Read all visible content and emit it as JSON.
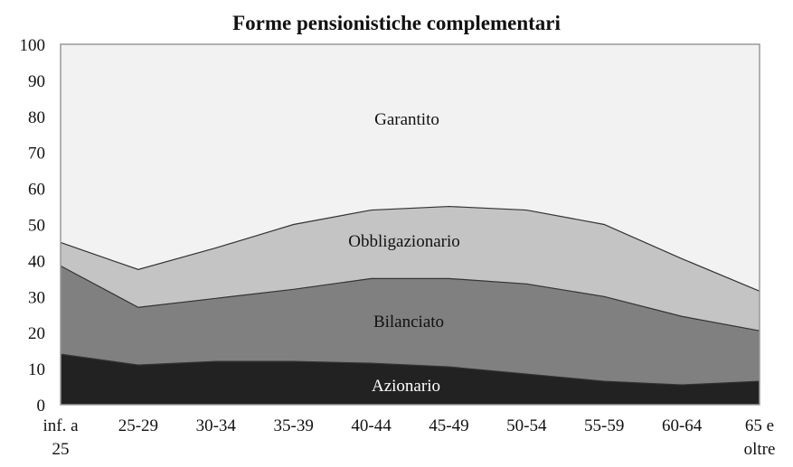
{
  "chart_data": {
    "type": "area",
    "stacked": true,
    "title": "Forme pensionistiche complementari",
    "xlabel": "",
    "ylabel": "",
    "ylim": [
      0,
      100
    ],
    "yticks": [
      0,
      10,
      20,
      30,
      40,
      50,
      60,
      70,
      80,
      90,
      100
    ],
    "grid": false,
    "legend": "inline labels",
    "categories": [
      "inf. a 25",
      "25-29",
      "30-34",
      "35-39",
      "40-44",
      "45-49",
      "50-54",
      "55-59",
      "60-64",
      "65 e oltre"
    ],
    "series": [
      {
        "name": "Azionario",
        "color": "#222222",
        "values": [
          14,
          11,
          12,
          12,
          11.5,
          10.5,
          8.5,
          6.5,
          5.5,
          6.5
        ]
      },
      {
        "name": "Bilanciato",
        "color": "#808080",
        "values": [
          24.5,
          16,
          17.5,
          20,
          23.5,
          24.5,
          25,
          23.5,
          19,
          14
        ]
      },
      {
        "name": "Obbligazionario",
        "color": "#c4c4c4",
        "values": [
          6.5,
          10.5,
          14,
          18,
          19,
          20,
          20.5,
          20,
          16,
          11
        ]
      },
      {
        "name": "Garantito",
        "color": "#f2f2f2",
        "values": [
          55,
          62.5,
          56.5,
          50,
          46,
          45,
          46,
          50,
          59.5,
          68.5
        ]
      }
    ]
  },
  "labels": {
    "title": "Forme pensionistiche complementari",
    "garantito": "Garantito",
    "obbligazionario": "Obbligazionario",
    "bilanciato": "Bilanciato",
    "azionario": "Azionario",
    "x_line1": [
      "inf. a",
      "25-29",
      "30-34",
      "35-39",
      "40-44",
      "45-49",
      "50-54",
      "55-59",
      "60-64",
      "65 e"
    ],
    "x_line2": [
      "25",
      "",
      "",
      "",
      "",
      "",
      "",
      "",
      "",
      "oltre"
    ]
  }
}
